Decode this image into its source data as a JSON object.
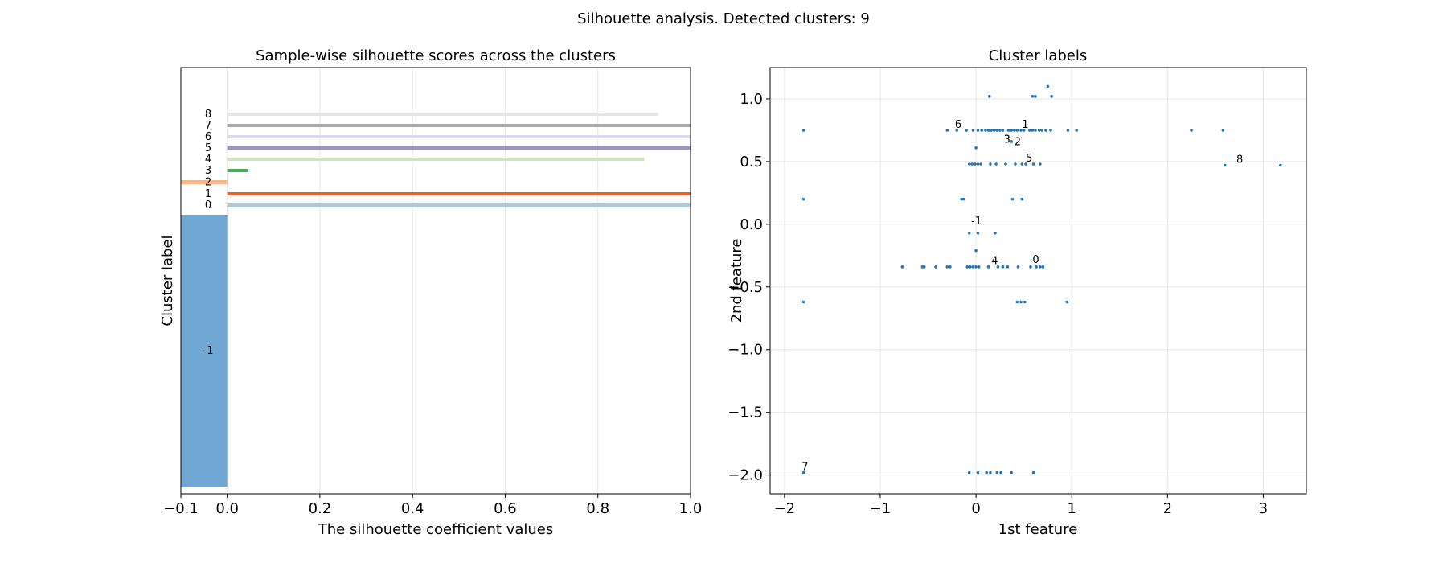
{
  "suptitle": "Silhouette analysis. Detected clusters: 9",
  "chart_data": [
    {
      "type": "bar",
      "title": "Sample-wise silhouette scores across the clusters",
      "xlabel": "The silhouette coefficient values",
      "ylabel": "Cluster label",
      "xlim": [
        -0.1,
        1.0
      ],
      "xticks": [
        -0.1,
        0.0,
        0.2,
        0.4,
        0.6,
        0.8,
        1.0
      ],
      "xtick_labels": [
        "−0.1",
        "0.0",
        "0.2",
        "0.4",
        "0.6",
        "0.8",
        "1.0"
      ],
      "grid": true,
      "orientation": "horizontal",
      "clusters": [
        {
          "label": "-1",
          "silhouette": -0.1,
          "color": "#6fa7d2",
          "thickness": 338
        },
        {
          "label": "0",
          "silhouette": 1.0,
          "color": "#a6cbe3",
          "thickness": 4
        },
        {
          "label": "1",
          "silhouette": 1.0,
          "color": "#e6652f",
          "thickness": 4
        },
        {
          "label": "2",
          "silhouette": -0.1,
          "color": "#f7b68a",
          "thickness": 5
        },
        {
          "label": "3",
          "silhouette": 0.046,
          "color": "#4ea85a",
          "thickness": 4
        },
        {
          "label": "4",
          "silhouette": 0.9,
          "color": "#c9e6bd",
          "thickness": 4
        },
        {
          "label": "5",
          "silhouette": 1.0,
          "color": "#9e92c8",
          "thickness": 4
        },
        {
          "label": "6",
          "silhouette": 1.0,
          "color": "#dcdaec",
          "thickness": 4
        },
        {
          "label": "7",
          "silhouette": 1.0,
          "color": "#a9a9a9",
          "thickness": 4
        },
        {
          "label": "8",
          "silhouette": 0.93,
          "color": "#e6e6e6",
          "thickness": 4
        }
      ]
    },
    {
      "type": "scatter",
      "title": "Cluster labels",
      "xlabel": "1st feature",
      "ylabel": "2nd feature",
      "xlim": [
        -2.15,
        3.45
      ],
      "ylim": [
        -2.15,
        1.25
      ],
      "xticks": [
        -2,
        -1,
        0,
        1,
        2,
        3
      ],
      "xtick_labels": [
        "−2",
        "−1",
        "0",
        "1",
        "2",
        "3"
      ],
      "yticks": [
        1.0,
        0.5,
        0.0,
        -0.5,
        -1.0,
        -1.5,
        -2.0
      ],
      "ytick_labels": [
        "1.0",
        "0.5",
        "0.0",
        "−0.5",
        "−1.0",
        "−1.5",
        "−2.0"
      ],
      "grid": true,
      "point_color": "#1f77b4",
      "points": [
        [
          -1.8,
          0.75
        ],
        [
          -1.8,
          0.2
        ],
        [
          -1.8,
          -0.62
        ],
        [
          -1.8,
          -1.98
        ],
        [
          -0.3,
          0.75
        ],
        [
          -0.2,
          0.75
        ],
        [
          -0.1,
          0.75
        ],
        [
          -0.03,
          0.75
        ],
        [
          0.02,
          0.75
        ],
        [
          0.06,
          0.75
        ],
        [
          0.1,
          0.75
        ],
        [
          0.13,
          0.75
        ],
        [
          0.16,
          0.75
        ],
        [
          0.19,
          0.75
        ],
        [
          0.22,
          0.75
        ],
        [
          0.25,
          0.75
        ],
        [
          0.28,
          0.75
        ],
        [
          0.34,
          0.75
        ],
        [
          0.37,
          0.75
        ],
        [
          0.4,
          0.75
        ],
        [
          0.43,
          0.75
        ],
        [
          0.47,
          0.75
        ],
        [
          0.5,
          0.75
        ],
        [
          0.56,
          0.75
        ],
        [
          0.59,
          0.75
        ],
        [
          0.62,
          0.75
        ],
        [
          0.66,
          0.75
        ],
        [
          0.69,
          0.75
        ],
        [
          0.73,
          0.75
        ],
        [
          0.78,
          0.75
        ],
        [
          0.96,
          0.75
        ],
        [
          1.05,
          0.75
        ],
        [
          2.25,
          0.75
        ],
        [
          2.58,
          0.75
        ],
        [
          0.14,
          1.02
        ],
        [
          0.59,
          1.02
        ],
        [
          0.62,
          1.02
        ],
        [
          0.75,
          1.1
        ],
        [
          0.79,
          1.02
        ],
        [
          0.0,
          0.61
        ],
        [
          0.37,
          0.66
        ],
        [
          -0.07,
          0.48
        ],
        [
          -0.04,
          0.48
        ],
        [
          -0.01,
          0.48
        ],
        [
          0.02,
          0.48
        ],
        [
          0.05,
          0.48
        ],
        [
          0.15,
          0.48
        ],
        [
          0.21,
          0.48
        ],
        [
          0.31,
          0.48
        ],
        [
          0.41,
          0.48
        ],
        [
          0.48,
          0.48
        ],
        [
          0.52,
          0.48
        ],
        [
          0.6,
          0.48
        ],
        [
          0.67,
          0.48
        ],
        [
          2.6,
          0.47
        ],
        [
          3.18,
          0.47
        ],
        [
          -0.15,
          0.2
        ],
        [
          -0.13,
          0.2
        ],
        [
          0.38,
          0.2
        ],
        [
          0.48,
          0.2
        ],
        [
          -0.07,
          -0.07
        ],
        [
          0.02,
          -0.07
        ],
        [
          0.2,
          -0.07
        ],
        [
          0.0,
          -0.21
        ],
        [
          -0.77,
          -0.34
        ],
        [
          -0.56,
          -0.34
        ],
        [
          -0.54,
          -0.34
        ],
        [
          -0.42,
          -0.34
        ],
        [
          -0.3,
          -0.34
        ],
        [
          -0.27,
          -0.34
        ],
        [
          -0.09,
          -0.34
        ],
        [
          -0.06,
          -0.34
        ],
        [
          -0.03,
          -0.34
        ],
        [
          0.0,
          -0.34
        ],
        [
          0.03,
          -0.34
        ],
        [
          0.13,
          -0.34
        ],
        [
          0.23,
          -0.34
        ],
        [
          0.28,
          -0.34
        ],
        [
          0.33,
          -0.34
        ],
        [
          0.44,
          -0.34
        ],
        [
          0.57,
          -0.34
        ],
        [
          0.63,
          -0.34
        ],
        [
          0.67,
          -0.34
        ],
        [
          0.7,
          -0.34
        ],
        [
          0.43,
          -0.62
        ],
        [
          0.47,
          -0.62
        ],
        [
          0.51,
          -0.62
        ],
        [
          0.95,
          -0.62
        ],
        [
          -0.07,
          -1.98
        ],
        [
          0.02,
          -1.98
        ],
        [
          0.11,
          -1.98
        ],
        [
          0.15,
          -1.98
        ],
        [
          0.22,
          -1.98
        ],
        [
          0.26,
          -1.98
        ],
        [
          0.37,
          -1.98
        ],
        [
          0.6,
          -1.98
        ]
      ],
      "annotations": [
        {
          "text": "6",
          "x": -0.22,
          "y": 0.77
        },
        {
          "text": "1",
          "x": 0.48,
          "y": 0.77
        },
        {
          "text": "3",
          "x": 0.29,
          "y": 0.65
        },
        {
          "text": "2",
          "x": 0.4,
          "y": 0.63
        },
        {
          "text": "5",
          "x": 0.52,
          "y": 0.5
        },
        {
          "text": "8",
          "x": 2.72,
          "y": 0.49
        },
        {
          "text": "-1",
          "x": -0.05,
          "y": 0.0
        },
        {
          "text": "4",
          "x": 0.16,
          "y": -0.32
        },
        {
          "text": "0",
          "x": 0.59,
          "y": -0.31
        },
        {
          "text": "7",
          "x": -1.82,
          "y": -1.96
        }
      ]
    }
  ]
}
